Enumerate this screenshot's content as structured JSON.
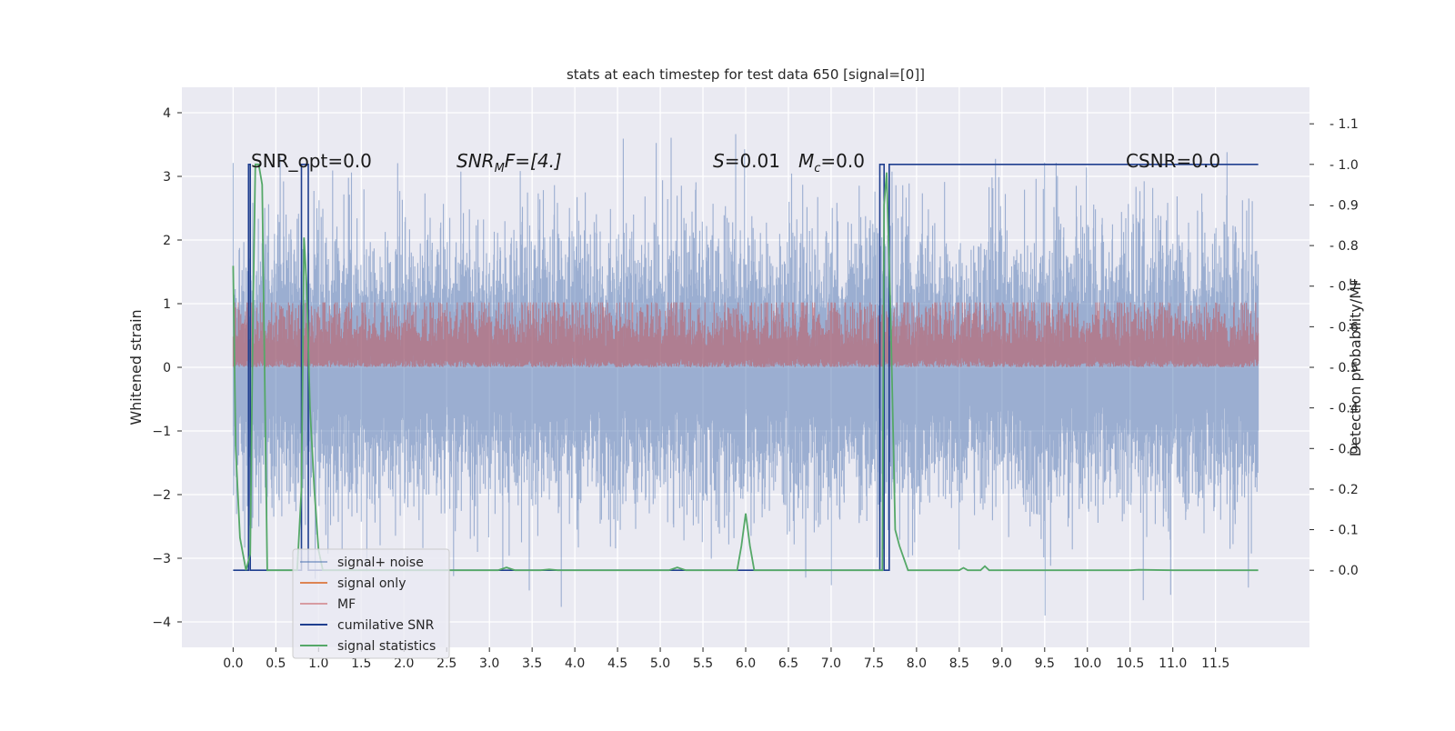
{
  "chart_data": {
    "type": "line",
    "title": "stats at each timestep for test data 650 [signal=[0]]",
    "xlabel": "",
    "ylabel": "Whitened strain",
    "y2label": "Detection probability/MF",
    "xlim": [
      -0.6,
      12.6
    ],
    "ylim": [
      -4.4,
      4.4
    ],
    "y2lim": [
      -0.19,
      1.19
    ],
    "xticks": [
      "0.0",
      "0.5",
      "1.0",
      "1.5",
      "2.0",
      "2.5",
      "3.0",
      "3.5",
      "4.0",
      "4.5",
      "5.0",
      "5.5",
      "6.0",
      "6.5",
      "7.0",
      "7.5",
      "8.0",
      "8.5",
      "9.0",
      "9.5",
      "10.0",
      "10.5",
      "11.0",
      "11.5"
    ],
    "xtick_values": [
      0,
      0.5,
      1,
      1.5,
      2,
      2.5,
      3,
      3.5,
      4,
      4.5,
      5,
      5.5,
      6,
      6.5,
      7,
      7.5,
      8,
      8.5,
      9,
      9.5,
      10,
      10.5,
      11,
      11.5
    ],
    "yticks": [
      -4,
      -3,
      -2,
      -1,
      0,
      1,
      2,
      3,
      4
    ],
    "y2ticks": [
      "0.0",
      "0.1",
      "0.2",
      "0.3",
      "0.4",
      "0.5",
      "0.6",
      "0.7",
      "0.8",
      "0.9",
      "1.0",
      "1.1"
    ],
    "y2tick_values": [
      0,
      0.1,
      0.2,
      0.3,
      0.4,
      0.5,
      0.6,
      0.7,
      0.8,
      0.9,
      1.0,
      1.1
    ],
    "grid": true,
    "legend_position": "lower-left",
    "annotations": {
      "snr_opt": "SNR_opt=0.0",
      "snr_mf_main": "SNR",
      "snr_mf_sub": "M",
      "snr_mf_rest": "F=[4.]",
      "s_main": "S",
      "s_rest": "=0.01",
      "mc_main": "M",
      "mc_sub": "c",
      "mc_rest": "=0.0",
      "csnr": "CSNR=0.0"
    },
    "series": [
      {
        "name": "signal+ noise",
        "color": "#4c72b0",
        "alpha": 0.5,
        "axis": "left",
        "envelope": {
          "center": 0.0,
          "std": 1.0,
          "t_start": 0.0,
          "t_end": 12.0
        }
      },
      {
        "name": "signal only",
        "color": "#dd8452",
        "axis": "left",
        "values_constant": 0.0
      },
      {
        "name": "MF",
        "color": "#c44e52",
        "alpha": 0.5,
        "axis": "right",
        "envelope": {
          "center": 0.55,
          "std": 0.04,
          "t_start": 0.0,
          "t_end": 12.0
        }
      },
      {
        "name": "cumilative SNR",
        "color": "#1f3f8f",
        "axis": "right",
        "x": [
          0.0,
          0.18,
          0.18,
          0.2,
          0.2,
          0.38,
          0.38,
          0.8,
          0.8,
          0.88,
          0.88,
          7.57,
          7.57,
          7.62,
          7.62,
          7.68,
          7.68,
          12.0
        ],
        "y": [
          0.0,
          0.0,
          1.0,
          1.0,
          0.0,
          0.0,
          0.0,
          0.0,
          1.0,
          1.0,
          0.0,
          0.0,
          1.0,
          1.0,
          0.0,
          0.0,
          1.0,
          1.0
        ]
      },
      {
        "name": "signal statistics",
        "color": "#55a868",
        "axis": "right",
        "x": [
          0.0,
          0.03,
          0.08,
          0.15,
          0.2,
          0.23,
          0.26,
          0.3,
          0.34,
          0.38,
          0.4,
          0.5,
          0.75,
          0.8,
          0.83,
          0.86,
          0.9,
          0.95,
          1.0,
          1.05,
          1.2,
          3.0,
          3.1,
          3.2,
          3.3,
          3.6,
          3.7,
          3.8,
          5.1,
          5.2,
          5.3,
          5.9,
          5.95,
          6.0,
          6.05,
          6.1,
          7.6,
          7.62,
          7.65,
          7.7,
          7.75,
          7.8,
          7.85,
          7.9,
          8.0,
          8.5,
          8.55,
          8.6,
          8.75,
          8.8,
          8.85,
          9.0,
          10.5,
          10.6,
          11.0,
          12.0
        ],
        "y": [
          0.75,
          0.3,
          0.08,
          0.0,
          0.04,
          0.6,
          1.0,
          1.0,
          0.95,
          0.3,
          0.0,
          0.0,
          0.0,
          0.2,
          0.82,
          0.7,
          0.4,
          0.2,
          0.05,
          0.0,
          0.0,
          0.0,
          0.0,
          0.007,
          0.0,
          0.0,
          0.002,
          0.0,
          0.0,
          0.007,
          0.0,
          0.0,
          0.06,
          0.14,
          0.06,
          0.0,
          0.0,
          0.9,
          0.98,
          0.6,
          0.1,
          0.06,
          0.03,
          0.0,
          0.0,
          0.0,
          0.006,
          0.0,
          0.0,
          0.01,
          0.0,
          0.0,
          0.0,
          0.001,
          0.0,
          0.0
        ]
      }
    ]
  }
}
